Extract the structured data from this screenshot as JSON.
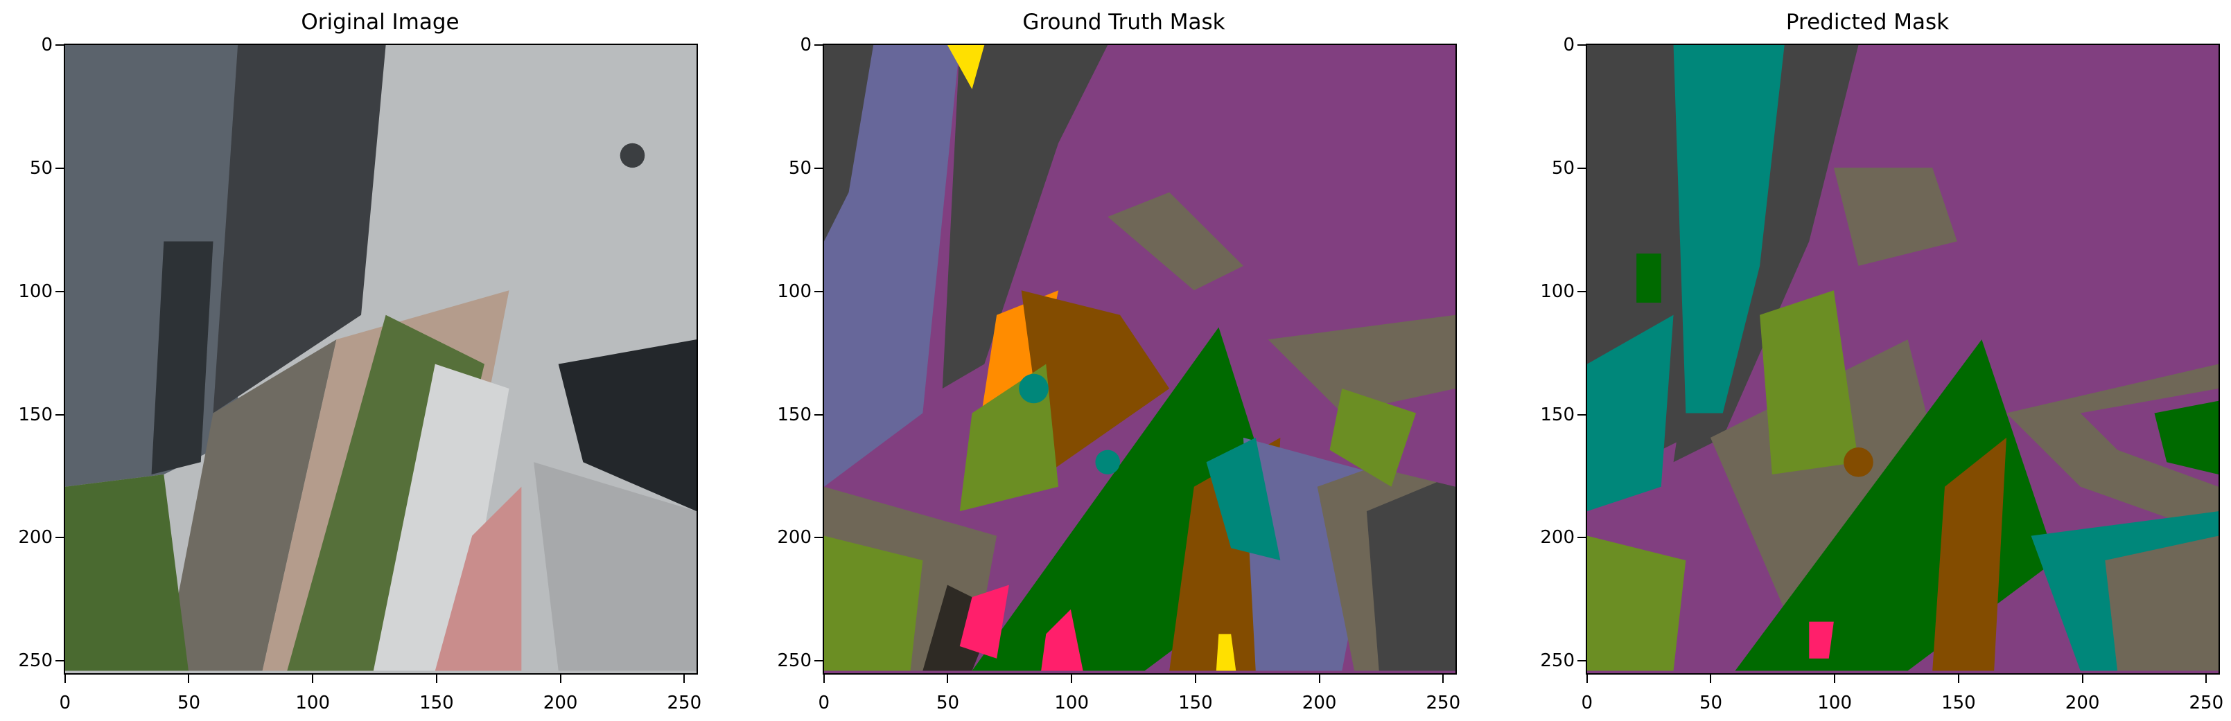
{
  "panels": [
    {
      "title": "Original Image"
    },
    {
      "title": "Ground Truth Mask"
    },
    {
      "title": "Predicted Mask"
    }
  ],
  "axis_ticks": {
    "x": [
      "0",
      "50",
      "100",
      "150",
      "200",
      "250"
    ],
    "y": [
      "0",
      "50",
      "100",
      "150",
      "200",
      "250"
    ]
  },
  "colors": {
    "purple": "#813f80",
    "lavender": "#67679a",
    "dark_gray": "#444444",
    "taupe": "#6f6757",
    "green": "#006a00",
    "olive": "#6b8e23",
    "brown": "#834c00",
    "teal": "#00877a",
    "orange": "#ff8c00",
    "yellow": "#ffe000",
    "pink": "#ff1f6b"
  }
}
